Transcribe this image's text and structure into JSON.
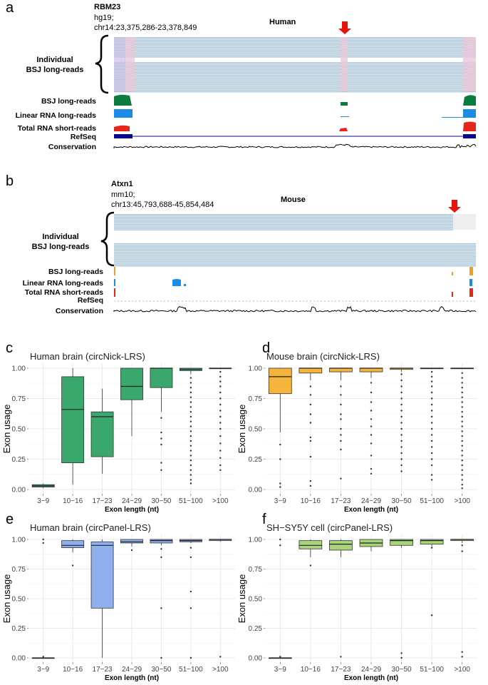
{
  "panel_a": {
    "letter": "a",
    "gene": "RBM23",
    "assembly": "hg19;",
    "locus": "chr14:23,375,286-23,378,849",
    "species": "Human",
    "individual_label_1": "Individual",
    "individual_label_2": "BSJ long-reads",
    "tracks": [
      {
        "label": "BSJ long-reads",
        "color": "#0b7c3e"
      },
      {
        "label": "Linear RNA long-reads",
        "color": "#1a8be6"
      },
      {
        "label": "Total RNA short-reads",
        "color": "#e6261a"
      },
      {
        "label": "RefSeq",
        "color": "#0a0a8c"
      },
      {
        "label": "Conservation",
        "color": "#000000"
      }
    ]
  },
  "panel_b": {
    "letter": "b",
    "gene": "Atxn1",
    "assembly": "mm10;",
    "locus": "chr13:45,793,688-45,854,484",
    "species": "Mouse",
    "individual_label_1": "Individual",
    "individual_label_2": "BSJ long-reads",
    "tracks": [
      {
        "label": "BSJ long-reads",
        "color": "#f0a020"
      },
      {
        "label": "Linear RNA long-reads",
        "color": "#1a8be6"
      },
      {
        "label": "Total RNA short-reads",
        "color": "#e6261a"
      },
      {
        "label": "RefSeq",
        "color": "#0a0a8c"
      },
      {
        "label": "Conservation",
        "color": "#000000"
      }
    ]
  },
  "chart_data": [
    {
      "panel": "c",
      "type": "box",
      "title": "Human brain (circNick-LRS)",
      "fill": "#3aa86d",
      "xlabel": "Exon length (nt)",
      "ylabel": "Exon usage",
      "yticks": [
        "0.00",
        "0.25",
        "0.50",
        "0.75",
        "1.00"
      ],
      "ylim": [
        0,
        1
      ],
      "categories": [
        "3−9",
        "10−16",
        "17−23",
        "24−29",
        "30−50",
        "51−100",
        ">100"
      ],
      "boxes": [
        {
          "min": 0.01,
          "q1": 0.02,
          "median": 0.03,
          "q3": 0.04,
          "max": 0.05,
          "outliers": []
        },
        {
          "min": 0.04,
          "q1": 0.22,
          "median": 0.66,
          "q3": 0.93,
          "max": 1.0,
          "outliers": []
        },
        {
          "min": 0.13,
          "q1": 0.27,
          "median": 0.6,
          "q3": 0.64,
          "max": 0.83,
          "outliers": []
        },
        {
          "min": 0.44,
          "q1": 0.74,
          "median": 0.85,
          "q3": 1.0,
          "max": 1.0,
          "outliers": []
        },
        {
          "min": 0.64,
          "q1": 0.84,
          "median": 1.0,
          "q3": 1.0,
          "max": 1.0,
          "outliers": [
            0.59,
            0.47,
            0.42,
            0.37,
            0.22,
            0.16
          ]
        },
        {
          "min": 0.95,
          "q1": 0.98,
          "median": 0.99,
          "q3": 1.0,
          "max": 1.0,
          "outliers": [
            0.92,
            0.88,
            0.84,
            0.8,
            0.76,
            0.72,
            0.68,
            0.64,
            0.6,
            0.56,
            0.52,
            0.48,
            0.44,
            0.4,
            0.36,
            0.32,
            0.28,
            0.24,
            0.2,
            0.16,
            0.12,
            0.08,
            0.05
          ]
        },
        {
          "min": 1.0,
          "q1": 1.0,
          "median": 1.0,
          "q3": 1.0,
          "max": 1.0,
          "outliers": [
            0.97,
            0.93,
            0.89,
            0.85,
            0.8,
            0.75,
            0.7,
            0.65,
            0.6,
            0.55,
            0.5,
            0.44,
            0.38,
            0.32,
            0.26,
            0.2,
            0.16
          ]
        }
      ]
    },
    {
      "panel": "d",
      "type": "box",
      "title": "Mouse brain (circNick-LRS)",
      "fill": "#f5b43c",
      "xlabel": "Exon length (nt)",
      "ylabel": "Exon usage",
      "yticks": [
        "0.00",
        "0.25",
        "0.50",
        "0.75",
        "1.00"
      ],
      "ylim": [
        0,
        1
      ],
      "categories": [
        "3−9",
        "10−16",
        "17−23",
        "24−29",
        "30−50",
        "51−100",
        ">100"
      ],
      "boxes": [
        {
          "min": 0.47,
          "q1": 0.79,
          "median": 0.93,
          "q3": 1.0,
          "max": 1.0,
          "outliers": [
            0.37,
            0.25,
            0.05,
            0.02
          ]
        },
        {
          "min": 0.9,
          "q1": 0.96,
          "median": 1.0,
          "q3": 1.0,
          "max": 1.0,
          "outliers": [
            0.85,
            0.78,
            0.7,
            0.62,
            0.55,
            0.43,
            0.4,
            0.27,
            0.07,
            0.03
          ]
        },
        {
          "min": 0.9,
          "q1": 0.97,
          "median": 1.0,
          "q3": 1.0,
          "max": 1.0,
          "outliers": [
            0.85,
            0.78,
            0.7,
            0.62,
            0.58,
            0.5,
            0.45,
            0.4,
            0.33,
            0.09
          ]
        },
        {
          "min": 0.92,
          "q1": 0.97,
          "median": 1.0,
          "q3": 1.0,
          "max": 1.0,
          "outliers": [
            0.88,
            0.8,
            0.72,
            0.65,
            0.58,
            0.52,
            0.45,
            0.38,
            0.28,
            0.17,
            0.13
          ]
        },
        {
          "min": 0.97,
          "q1": 0.99,
          "median": 1.0,
          "q3": 1.0,
          "max": 1.0,
          "outliers": [
            0.95,
            0.9,
            0.85,
            0.8,
            0.75,
            0.7,
            0.65,
            0.6,
            0.55,
            0.5,
            0.45,
            0.4,
            0.35,
            0.3,
            0.25,
            0.2,
            0.15
          ]
        },
        {
          "min": 1.0,
          "q1": 1.0,
          "median": 1.0,
          "q3": 1.0,
          "max": 1.0,
          "outliers": [
            0.97,
            0.93,
            0.89,
            0.85,
            0.8,
            0.75,
            0.7,
            0.65,
            0.6,
            0.55,
            0.5,
            0.45,
            0.4,
            0.35,
            0.3,
            0.25,
            0.2,
            0.12,
            0.08
          ]
        },
        {
          "min": 1.0,
          "q1": 1.0,
          "median": 1.0,
          "q3": 1.0,
          "max": 1.0,
          "outliers": [
            0.96,
            0.92,
            0.88,
            0.84,
            0.8,
            0.76,
            0.72,
            0.68,
            0.64,
            0.6,
            0.56,
            0.52,
            0.48,
            0.44,
            0.4,
            0.36,
            0.32,
            0.28,
            0.24,
            0.2,
            0.16,
            0.12,
            0.08,
            0.04,
            0.01
          ]
        }
      ]
    },
    {
      "panel": "e",
      "type": "box",
      "title": "Human brain (circPanel-LRS)",
      "fill": "#8fb0ee",
      "xlabel": "Exon length (nt)",
      "ylabel": "Exon usage",
      "yticks": [
        "0.00",
        "0.25",
        "0.50",
        "0.75",
        "1.00"
      ],
      "ylim": [
        0,
        1
      ],
      "categories": [
        "3−9",
        "10−16",
        "17−23",
        "24−29",
        "30−50",
        "51−100",
        ">100"
      ],
      "boxes": [
        {
          "min": 0.0,
          "q1": 0.0,
          "median": 0.0,
          "q3": 0.0,
          "max": 0.0,
          "outliers": [
            1.0,
            0.97,
            0.01
          ]
        },
        {
          "min": 0.89,
          "q1": 0.93,
          "median": 0.95,
          "q3": 0.99,
          "max": 1.0,
          "outliers": [
            0.78
          ]
        },
        {
          "min": 0.0,
          "q1": 0.42,
          "median": 0.95,
          "q3": 0.98,
          "max": 1.0,
          "outliers": []
        },
        {
          "min": 0.94,
          "q1": 0.97,
          "median": 0.98,
          "q3": 1.0,
          "max": 1.0,
          "outliers": [
            0.91
          ]
        },
        {
          "min": 0.95,
          "q1": 0.97,
          "median": 0.99,
          "q3": 1.0,
          "max": 1.0,
          "outliers": [
            0.92,
            0.85,
            0.42,
            0.0
          ]
        },
        {
          "min": 0.97,
          "q1": 0.98,
          "median": 0.99,
          "q3": 1.0,
          "max": 1.0,
          "outliers": [
            0.93,
            0.85,
            0.56,
            0.42,
            0.0
          ]
        },
        {
          "min": 0.98,
          "q1": 0.99,
          "median": 1.0,
          "q3": 1.0,
          "max": 1.0,
          "outliers": [
            0.01
          ]
        }
      ]
    },
    {
      "panel": "f",
      "type": "box",
      "title": "SH−SY5Y cell (circPanel-LRS)",
      "fill": "#a8d47a",
      "xlabel": "Exon length (nt)",
      "ylabel": "Exon usage",
      "yticks": [
        "0.00",
        "0.25",
        "0.50",
        "0.75",
        "1.00"
      ],
      "ylim": [
        0,
        1
      ],
      "categories": [
        "3−9",
        "10−16",
        "17−23",
        "24−29",
        "30−50",
        "51−100",
        ">100"
      ],
      "boxes": [
        {
          "min": 0.0,
          "q1": 0.0,
          "median": 0.0,
          "q3": 0.0,
          "max": 0.0,
          "outliers": [
            1.0,
            0.95,
            0.01
          ]
        },
        {
          "min": 0.85,
          "q1": 0.92,
          "median": 0.95,
          "q3": 0.99,
          "max": 1.0,
          "outliers": [
            0.78
          ]
        },
        {
          "min": 0.85,
          "q1": 0.91,
          "median": 0.96,
          "q3": 0.99,
          "max": 1.0,
          "outliers": [
            0.01
          ]
        },
        {
          "min": 0.9,
          "q1": 0.94,
          "median": 0.97,
          "q3": 1.0,
          "max": 1.0,
          "outliers": []
        },
        {
          "min": 0.93,
          "q1": 0.95,
          "median": 0.99,
          "q3": 1.0,
          "max": 1.0,
          "outliers": [
            0.04,
            0.0
          ]
        },
        {
          "min": 0.94,
          "q1": 0.96,
          "median": 0.99,
          "q3": 1.0,
          "max": 1.0,
          "outliers": [
            0.93,
            0.36
          ]
        },
        {
          "min": 0.97,
          "q1": 0.99,
          "median": 1.0,
          "q3": 1.0,
          "max": 1.0,
          "outliers": [
            0.95,
            0.9,
            0.05,
            0.01
          ]
        }
      ]
    }
  ]
}
